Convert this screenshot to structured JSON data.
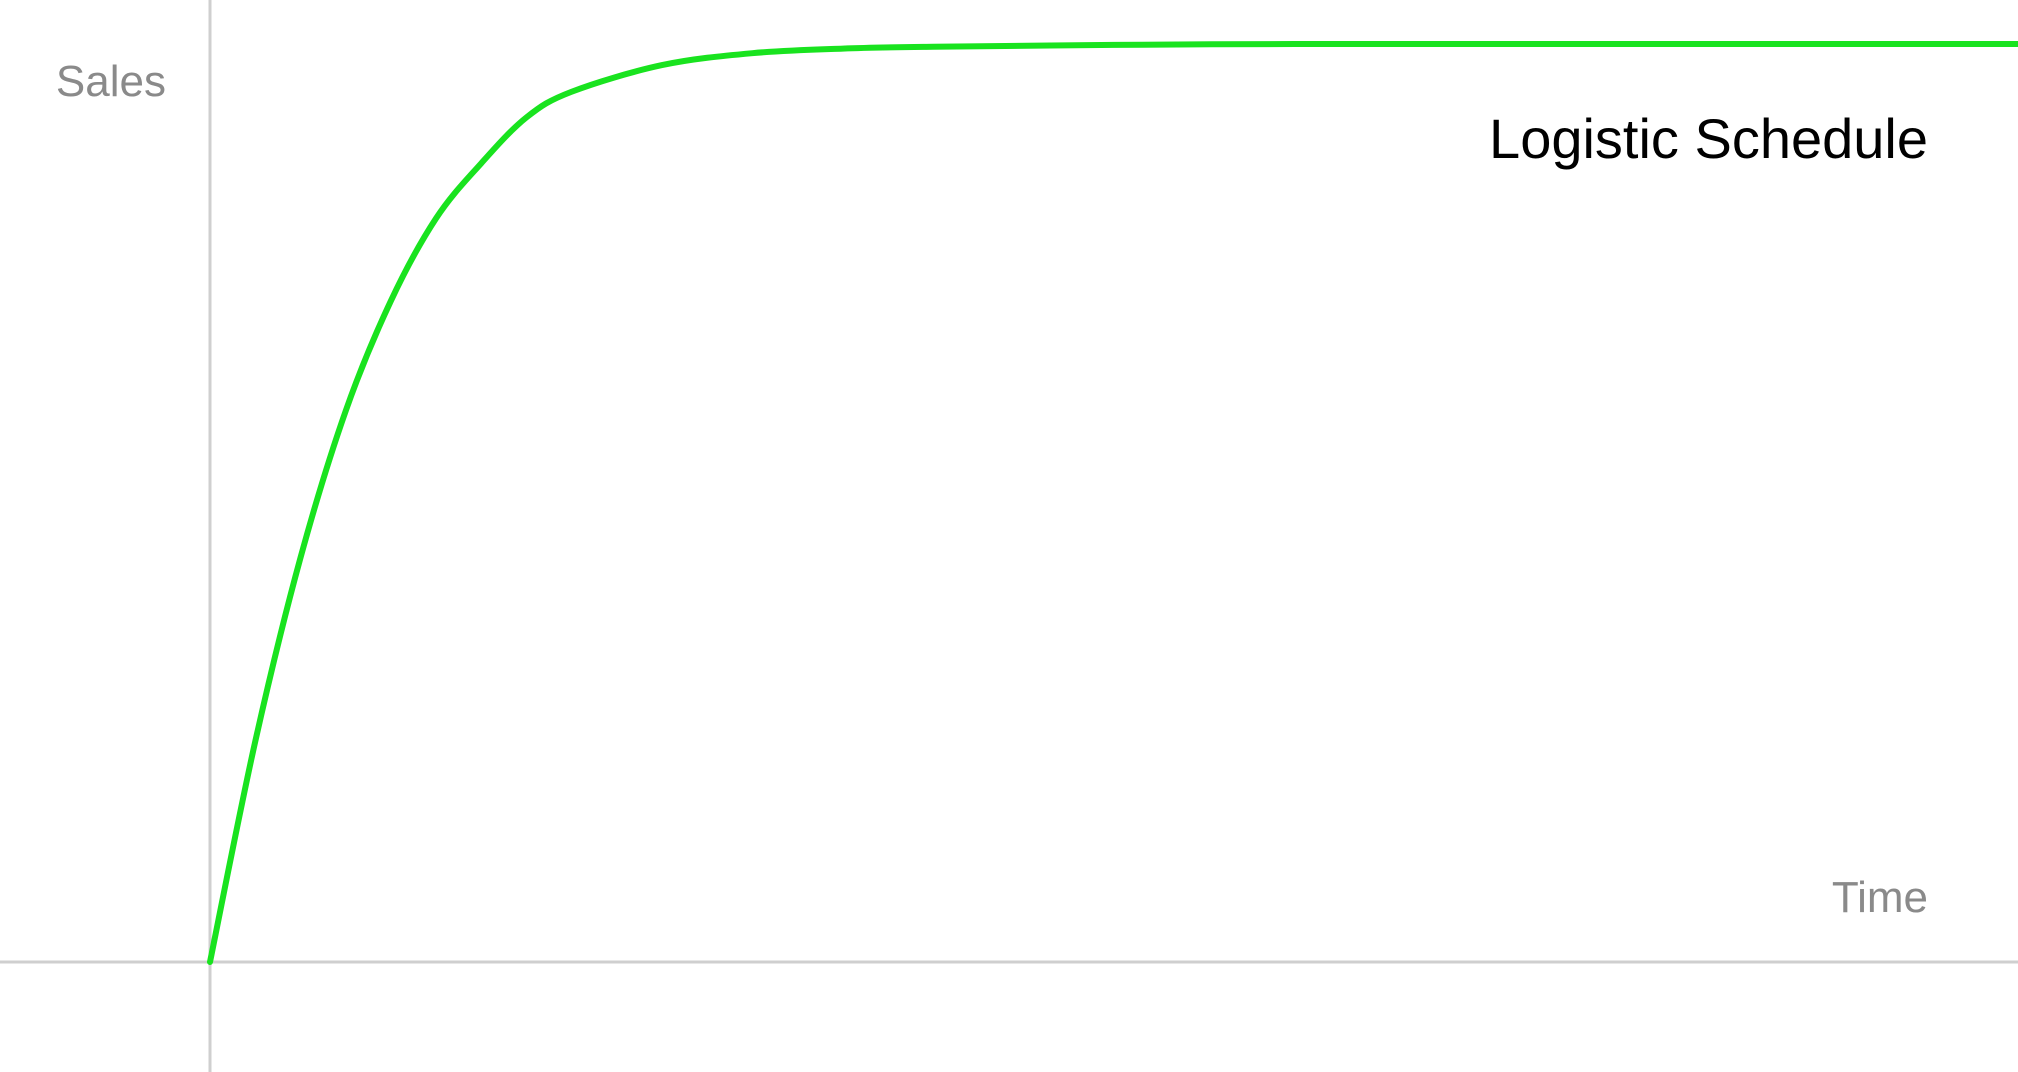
{
  "chart_data": {
    "type": "line",
    "title": "Logistic Schedule",
    "xlabel": "Time",
    "ylabel": "Sales",
    "xlim": [
      0,
      1
    ],
    "ylim": [
      0,
      1
    ],
    "grid": false,
    "series": [
      {
        "color": "#19e31f",
        "x": [
          0,
          0.025,
          0.05,
          0.075,
          0.1,
          0.125,
          0.15,
          0.175,
          0.2,
          0.25,
          0.3,
          0.35,
          0.4,
          0.5,
          0.6,
          0.7,
          0.8,
          0.9,
          1.0
        ],
        "y": [
          0,
          0.24,
          0.44,
          0.6,
          0.72,
          0.81,
          0.87,
          0.92,
          0.948,
          0.977,
          0.99,
          0.995,
          0.997,
          0.999,
          1.0,
          1.0,
          1.0,
          1.0,
          1.0
        ]
      }
    ]
  },
  "colors": {
    "axis": "#cfcfcf",
    "axis_label": "#8a8a8a",
    "title": "#000000",
    "series": "#19e31f"
  }
}
